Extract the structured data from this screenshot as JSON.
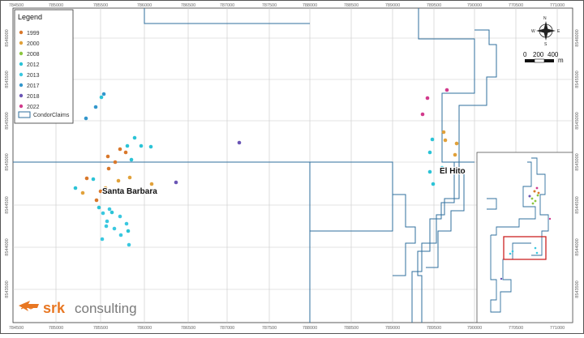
{
  "map": {
    "x_ticks": [
      "784500",
      "785000",
      "785500",
      "786000",
      "786500",
      "787000",
      "787500",
      "788000",
      "788500",
      "789000",
      "789500",
      "790000",
      "770500",
      "771000"
    ],
    "x_ticks_bottom": [
      "784500",
      "785000",
      "785500",
      "786000",
      "786500",
      "787000",
      "787500",
      "788000",
      "788500",
      "789000",
      "789500",
      "790000",
      "770500",
      "771000"
    ],
    "y_ticks_left": [
      "8546000",
      "8545500",
      "8545000",
      "8545000",
      "8544500",
      "8544000",
      "8543500"
    ],
    "y_ticks_right": [
      "8546000",
      "8545500",
      "8545000",
      "8545000",
      "8544500",
      "8544000",
      "8543500"
    ],
    "place_labels": {
      "santa_barbara": "Santa Barbara",
      "el_hito": "El Hito"
    },
    "colors": {
      "claims": "#2f6f9e",
      "grid": "#c8c8c8",
      "y1999": "#d9782b",
      "y2000": "#e1a13a",
      "y2008": "#8cc63f",
      "y2012": "#2bc3d6",
      "y2013": "#3ac8e0",
      "y2017": "#3296cc",
      "y2018": "#6a55b5",
      "y2022": "#d23a8c"
    }
  },
  "legend": {
    "title": "Legend",
    "items": [
      {
        "label": "1999",
        "color": "#d9782b"
      },
      {
        "label": "2000",
        "color": "#e1a13a"
      },
      {
        "label": "2008",
        "color": "#8cc63f"
      },
      {
        "label": "2012",
        "color": "#2bc3d6"
      },
      {
        "label": "2013",
        "color": "#3ac8e0"
      },
      {
        "label": "2017",
        "color": "#3296cc"
      },
      {
        "label": "2018",
        "color": "#6a55b5"
      },
      {
        "label": "2022",
        "color": "#d23a8c"
      }
    ],
    "claims_label": "CondorClaims"
  },
  "scalebar": {
    "labels": [
      "0",
      "200",
      "400"
    ],
    "unit": "m",
    "north_letters": {
      "n": "N",
      "e": "E",
      "s": "S",
      "w": "W"
    }
  },
  "logo": {
    "brand": "srk",
    "word": "consulting"
  }
}
